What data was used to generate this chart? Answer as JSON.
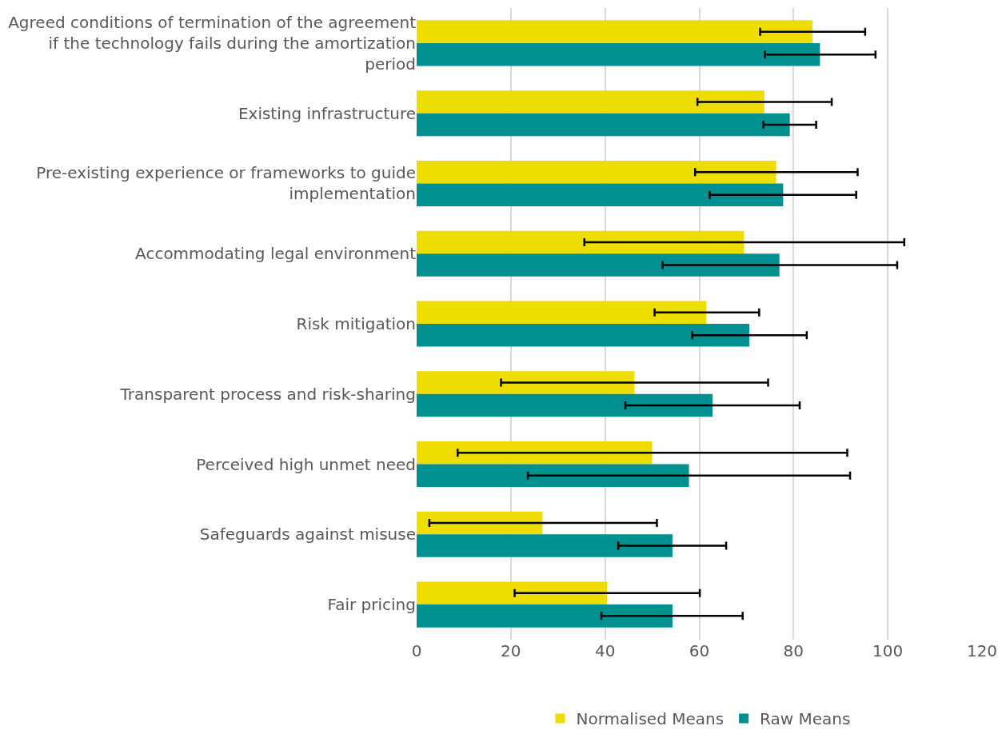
{
  "chart_data": {
    "type": "bar",
    "orientation": "horizontal",
    "categories": [
      "Agreed conditions of termination of the agreement if the technology fails during the amortization period",
      "Existing infrastructure",
      "Pre-existing experience or frameworks to guide implementation",
      "Accommodating legal environment",
      "Risk mitigation",
      "Transparent process and risk-sharing",
      "Perceived high unmet need",
      "Safeguards against misuse",
      "Fair pricing"
    ],
    "series": [
      {
        "name": "Normalised Means",
        "color": "#eedd00",
        "values": [
          84.0,
          73.8,
          76.3,
          69.5,
          61.5,
          46.2,
          50.0,
          26.7,
          40.4
        ],
        "errors": [
          [
            72.9,
            95.2
          ],
          [
            59.6,
            88.1
          ],
          [
            59.1,
            93.6
          ],
          [
            35.6,
            103.5
          ],
          [
            50.5,
            72.7
          ],
          [
            17.9,
            74.6
          ],
          [
            8.7,
            91.4
          ],
          [
            2.7,
            51.0
          ],
          [
            20.8,
            60.1
          ]
        ]
      },
      {
        "name": "Raw Means",
        "color": "#009090",
        "values": [
          85.6,
          79.2,
          77.8,
          77.0,
          70.6,
          62.8,
          57.8,
          54.3,
          54.3
        ],
        "errors": [
          [
            73.9,
            97.4
          ],
          [
            73.6,
            84.8
          ],
          [
            62.2,
            93.3
          ],
          [
            52.2,
            102.0
          ],
          [
            58.5,
            82.8
          ],
          [
            44.3,
            81.3
          ],
          [
            23.6,
            92.0
          ],
          [
            42.8,
            65.7
          ],
          [
            39.2,
            69.2
          ]
        ]
      }
    ],
    "xlim": [
      0,
      120
    ],
    "xticks": [
      0,
      20,
      40,
      60,
      80,
      100,
      120
    ],
    "grid": "x",
    "legend": "bottom"
  }
}
